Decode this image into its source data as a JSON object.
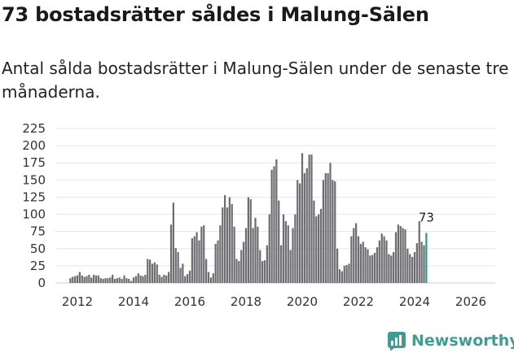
{
  "title": "73 bostadsrätter såldes i Malung-Sälen",
  "subtitle": "Antal sålda bostadsrätter i Malung-Sälen under de senaste tre månaderna.",
  "brand": {
    "name": "Newsworthy",
    "logo_icon": "newsworthy-logo-icon",
    "color": "#3f9c93"
  },
  "chart_data": {
    "type": "bar",
    "title": "Antal sålda bostadsrätter i Malung-Sälen",
    "x_unit": "month",
    "start": "2011-10",
    "end": "2026-02",
    "ylim": [
      0,
      225
    ],
    "y_ticks": [
      0,
      25,
      50,
      75,
      100,
      125,
      150,
      175,
      200,
      225
    ],
    "x_ticks": [
      "2012",
      "2014",
      "2016",
      "2018",
      "2020",
      "2022",
      "2024",
      "2026"
    ],
    "bar_color": "#6e6e72",
    "highlight_color": "#2e9c92",
    "highlight_label": "73",
    "values": [
      7,
      9,
      10,
      11,
      16,
      11,
      9,
      10,
      12,
      8,
      12,
      11,
      11,
      7,
      6,
      7,
      7,
      8,
      12,
      6,
      7,
      8,
      6,
      11,
      7,
      6,
      3,
      8,
      10,
      14,
      11,
      10,
      12,
      35,
      34,
      28,
      30,
      27,
      12,
      9,
      12,
      11,
      16,
      85,
      117,
      51,
      45,
      22,
      28,
      10,
      13,
      18,
      65,
      68,
      74,
      62,
      82,
      84,
      35,
      16,
      8,
      14,
      57,
      62,
      84,
      110,
      128,
      110,
      125,
      115,
      82,
      35,
      32,
      48,
      60,
      80,
      125,
      122,
      80,
      95,
      82,
      48,
      32,
      33,
      55,
      100,
      165,
      170,
      180,
      120,
      55,
      100,
      90,
      84,
      48,
      80,
      100,
      150,
      145,
      189,
      160,
      167,
      187,
      187,
      120,
      97,
      100,
      108,
      150,
      160,
      160,
      175,
      150,
      148,
      50,
      20,
      17,
      25,
      26,
      28,
      68,
      80,
      87,
      68,
      57,
      60,
      52,
      49,
      40,
      41,
      44,
      52,
      62,
      72,
      68,
      62,
      42,
      40,
      45,
      74,
      85,
      83,
      80,
      78,
      50,
      42,
      38,
      45,
      58,
      90,
      60,
      55,
      73
    ]
  }
}
